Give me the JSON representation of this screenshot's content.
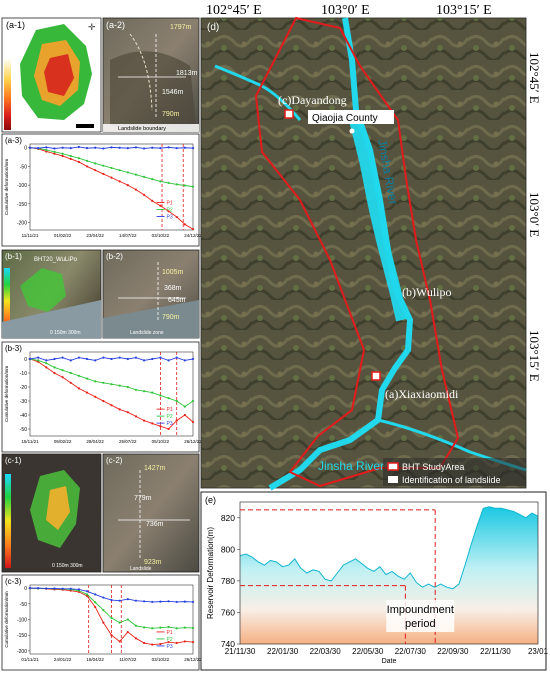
{
  "panel_a": {
    "a1_label": "(a-1)",
    "a2_label": "(a-2)",
    "a2_heights": [
      "1797m",
      "790m"
    ],
    "a2_dimensions": [
      "1813m",
      "1546m"
    ],
    "a2_legend": "Landslide boundary",
    "a3_label": "(a-3)"
  },
  "panel_b": {
    "b1_label": "(b-1)",
    "b1_title": "BHT20_WuLiPo",
    "b1_scale": "0   150m   300m",
    "b2_label": "(b-2)",
    "b2_heights": [
      "1005m",
      "790m"
    ],
    "b2_dimensions": [
      "368m",
      "645m"
    ],
    "b2_legend": "Landslide zone",
    "b3_label": "(b-3)"
  },
  "panel_c": {
    "c1_label": "(c-1)",
    "c1_scale": "0   150m   300m",
    "c2_label": "(c-2)",
    "c2_heights": [
      "1427m",
      "923m"
    ],
    "c2_dimensions": [
      "779m",
      "736m"
    ],
    "c2_legend": "Landslide",
    "c3_label": "(c-3)"
  },
  "panel_d": {
    "label": "(d)",
    "top_ticks": [
      "102°45′ E",
      "103°0′ E",
      "103°15′ E"
    ],
    "right_ticks": [
      "102°45′ E",
      "103°0′ E",
      "103°15′ E"
    ],
    "places": [
      "(c)Dayandong",
      "Qiaojia County",
      "(b)Wulipo",
      "(a)Xiaxiaomidi"
    ],
    "rivers": [
      "Jinsha River",
      "Jinsha River"
    ],
    "legend": [
      "BHT  StudyArea",
      "Identification of landslide"
    ]
  },
  "chart_data": [
    {
      "id": "a-3",
      "type": "line",
      "ylabel": "Cumulative deformation/mm",
      "xticks": [
        "11/11/21",
        "01/02/22",
        "23/04/22",
        "14/07/22",
        "03/10/22",
        "24/12/22"
      ],
      "ylim": [
        -220,
        10
      ],
      "yticks": [
        0,
        -50,
        -100,
        -150,
        -200
      ],
      "vlines": [
        0.81,
        0.94
      ],
      "series": [
        {
          "name": "P1",
          "color": "#e8231b",
          "values": [
            0,
            -3,
            -10,
            -16,
            -22,
            -30,
            -38,
            -50,
            -60,
            -70,
            -80,
            -90,
            -100,
            -112,
            -126,
            -142,
            -155,
            -170,
            -185,
            -205,
            -218
          ]
        },
        {
          "name": "P2",
          "color": "#2fc43a",
          "values": [
            0,
            -2,
            -6,
            -11,
            -16,
            -22,
            -28,
            -35,
            -42,
            -48,
            -54,
            -60,
            -66,
            -72,
            -78,
            -84,
            -90,
            -94,
            -98,
            -101,
            -104
          ]
        },
        {
          "name": "P3",
          "color": "#2a3fe0",
          "values": [
            0,
            -1,
            1,
            -2,
            0,
            -1,
            2,
            -1,
            0,
            -2,
            1,
            0,
            -1,
            1,
            -2,
            0,
            -1,
            1,
            -1,
            0,
            -1
          ]
        }
      ]
    },
    {
      "id": "b-3",
      "type": "line",
      "ylabel": "Cumulative deformation/mm",
      "xticks": [
        "15/11/21",
        "05/02/22",
        "28/04/22",
        "25/07/22",
        "05/10/22",
        "26/12/22"
      ],
      "ylim": [
        -55,
        5
      ],
      "yticks": [
        0,
        -10,
        -20,
        -30,
        -40,
        -50
      ],
      "vlines": [
        0.8,
        0.9
      ],
      "series": [
        {
          "name": "P1",
          "color": "#e8231b",
          "values": [
            0,
            -2,
            -6,
            -10,
            -13,
            -17,
            -21,
            -24,
            -27,
            -30,
            -33,
            -36,
            -38,
            -41,
            -44,
            -46,
            -48,
            -50,
            -44,
            -40,
            -45
          ]
        },
        {
          "name": "P2",
          "color": "#2fc43a",
          "values": [
            0,
            -1,
            -3,
            -6,
            -8,
            -10,
            -12,
            -14,
            -16,
            -17,
            -18,
            -19,
            -20,
            -22,
            -23,
            -24,
            -26,
            -28,
            -30,
            -34,
            -30
          ]
        },
        {
          "name": "P3",
          "color": "#2a3fe0",
          "values": [
            0,
            1,
            -1,
            0,
            1,
            -1,
            1,
            0,
            -1,
            1,
            0,
            1,
            0,
            1,
            -1,
            0,
            1,
            -1,
            1,
            -1,
            0
          ]
        }
      ]
    },
    {
      "id": "c-3",
      "type": "line",
      "ylabel": "Cumulative deformation/mm",
      "xticks": [
        "01/11/21",
        "24/01/22",
        "18/04/22",
        "11/07/22",
        "03/10/22",
        "26/12/22"
      ],
      "ylim": [
        -210,
        10
      ],
      "yticks": [
        0,
        -50,
        -100,
        -150,
        -200
      ],
      "vlines": [
        0.36,
        0.5,
        0.56
      ],
      "series": [
        {
          "name": "P1",
          "color": "#e8231b",
          "values": [
            0,
            -1,
            -2,
            -4,
            -5,
            -8,
            -12,
            -25,
            -60,
            -110,
            -150,
            -170,
            -140,
            -160,
            -175,
            -180,
            -178,
            -172,
            -175,
            -170,
            -172
          ]
        },
        {
          "name": "P2",
          "color": "#2fc43a",
          "values": [
            0,
            -1,
            -1,
            -2,
            -3,
            -4,
            -8,
            -20,
            -45,
            -70,
            -95,
            -110,
            -100,
            -120,
            -125,
            -128,
            -126,
            -124,
            -128,
            -126,
            -127
          ]
        },
        {
          "name": "P3",
          "color": "#2a3fe0",
          "values": [
            0,
            0,
            -1,
            -1,
            -2,
            -2,
            -4,
            -10,
            -20,
            -30,
            -38,
            -40,
            -35,
            -40,
            -42,
            -44,
            -43,
            -42,
            -44,
            -43,
            -44
          ]
        }
      ]
    },
    {
      "id": "e",
      "type": "area",
      "ylabel": "Reservoir Deformation(m)",
      "xlabel": "Date",
      "xticks": [
        "21/11/30",
        "22/01/30",
        "22/03/30",
        "22/05/30",
        "22/07/30",
        "22/09/30",
        "22/11/30",
        "23/01"
      ],
      "ylim": [
        740,
        830
      ],
      "yticks": [
        740,
        760,
        780,
        800,
        820
      ],
      "hlines": [
        825,
        777
      ],
      "vlines": [
        0.555,
        0.655
      ],
      "annotation": "Impoundment period",
      "values": [
        796,
        797,
        795,
        792,
        790,
        793,
        792,
        789,
        790,
        794,
        788,
        785,
        787,
        786,
        781,
        780,
        785,
        790,
        792,
        794,
        791,
        788,
        786,
        789,
        784,
        786,
        783,
        781,
        785,
        779,
        776,
        778,
        776,
        778,
        776,
        775,
        778,
        790,
        803,
        815,
        826,
        827,
        826,
        826,
        825,
        824,
        822,
        820,
        823,
        821
      ]
    }
  ]
}
